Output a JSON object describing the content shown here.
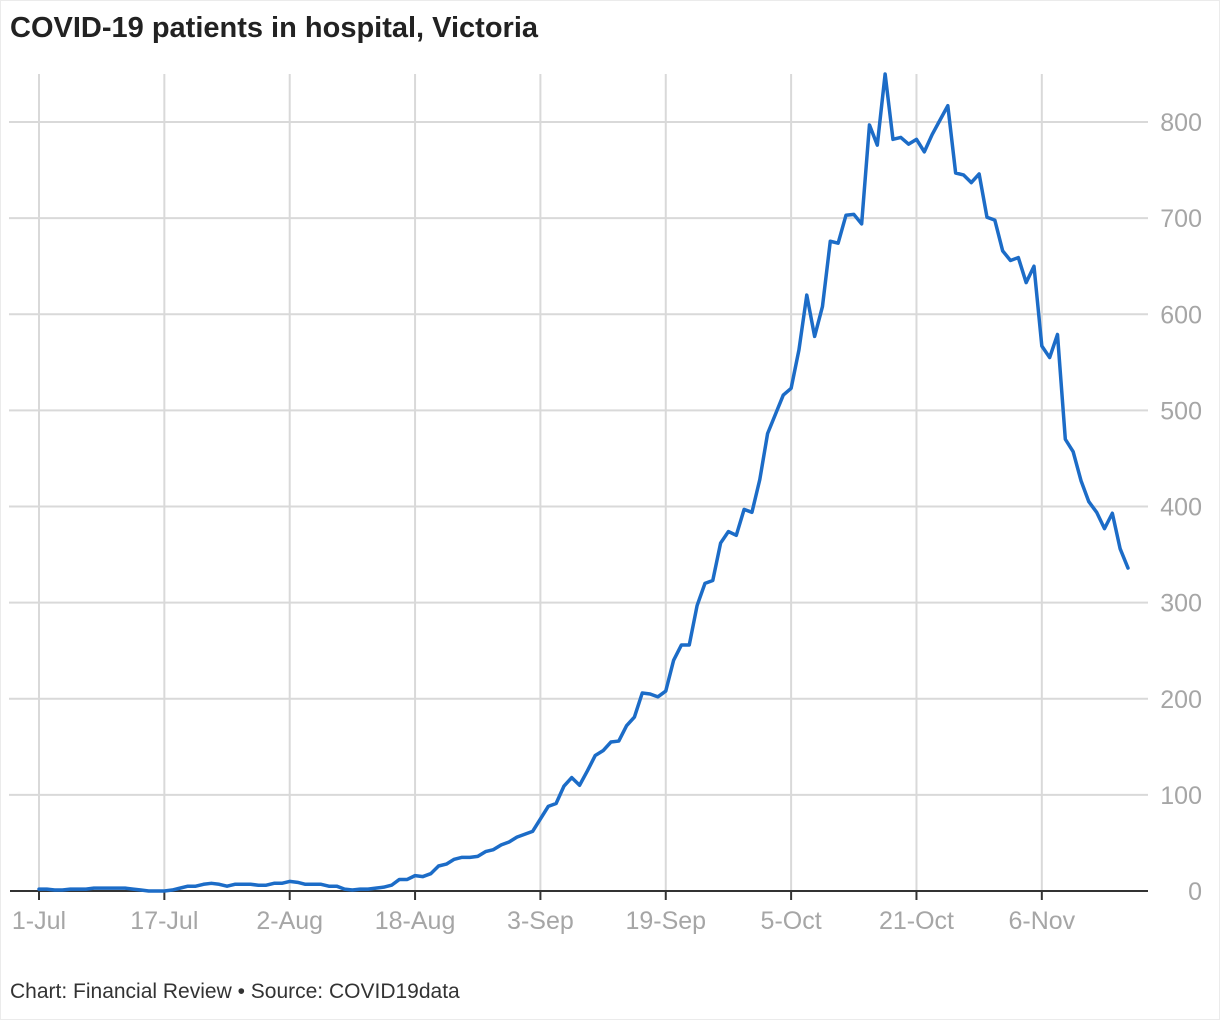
{
  "title": "COVID-19 patients in hospital, Victoria",
  "footer": "Chart: Financial Review • Source: COVID19data",
  "colors": {
    "line": "#1c6cc7",
    "grid": "#d9d9d9",
    "axis": "#333333",
    "tick_text": "#a6a6a6"
  },
  "chart_data": {
    "type": "line",
    "title": "COVID-19 patients in hospital, Victoria",
    "xlabel": "",
    "ylabel": "",
    "x_start": "2021-07-01",
    "x_ticks": [
      "1-Jul",
      "17-Jul",
      "2-Aug",
      "18-Aug",
      "3-Sep",
      "19-Sep",
      "5-Oct",
      "21-Oct",
      "6-Nov"
    ],
    "y_ticks": [
      0,
      100,
      200,
      300,
      400,
      500,
      600,
      700,
      800
    ],
    "ylim": [
      0,
      850
    ],
    "y_axis_side": "right",
    "grid": true,
    "series": [
      {
        "values": [
          2,
          2,
          1,
          1,
          2,
          2,
          2,
          3,
          3,
          3,
          3,
          3,
          2,
          1,
          0,
          0,
          0,
          1,
          3,
          5,
          5,
          7,
          8,
          7,
          5,
          7,
          7,
          7,
          6,
          6,
          8,
          8,
          10,
          9,
          7,
          7,
          7,
          5,
          5,
          2,
          1,
          2,
          2,
          3,
          4,
          6,
          12,
          12,
          16,
          15,
          18,
          26,
          28,
          33,
          35,
          35,
          36,
          41,
          43,
          48,
          51,
          56,
          59,
          62,
          75,
          88,
          91,
          109,
          118,
          110,
          125,
          141,
          146,
          155,
          156,
          172,
          181,
          206,
          205,
          202,
          208,
          240,
          256,
          256,
          297,
          320,
          323,
          362,
          374,
          370,
          397,
          394,
          428,
          476,
          496,
          516,
          523,
          563,
          620,
          577,
          608,
          676,
          674,
          703,
          704,
          694,
          797,
          776,
          850,
          782,
          784,
          777,
          782,
          769,
          787,
          802,
          817,
          747,
          745,
          737,
          746,
          701,
          698,
          666,
          656,
          659,
          633,
          650,
          567,
          555,
          579,
          470,
          457,
          427,
          405,
          394,
          377,
          393,
          356,
          336
        ]
      }
    ]
  }
}
